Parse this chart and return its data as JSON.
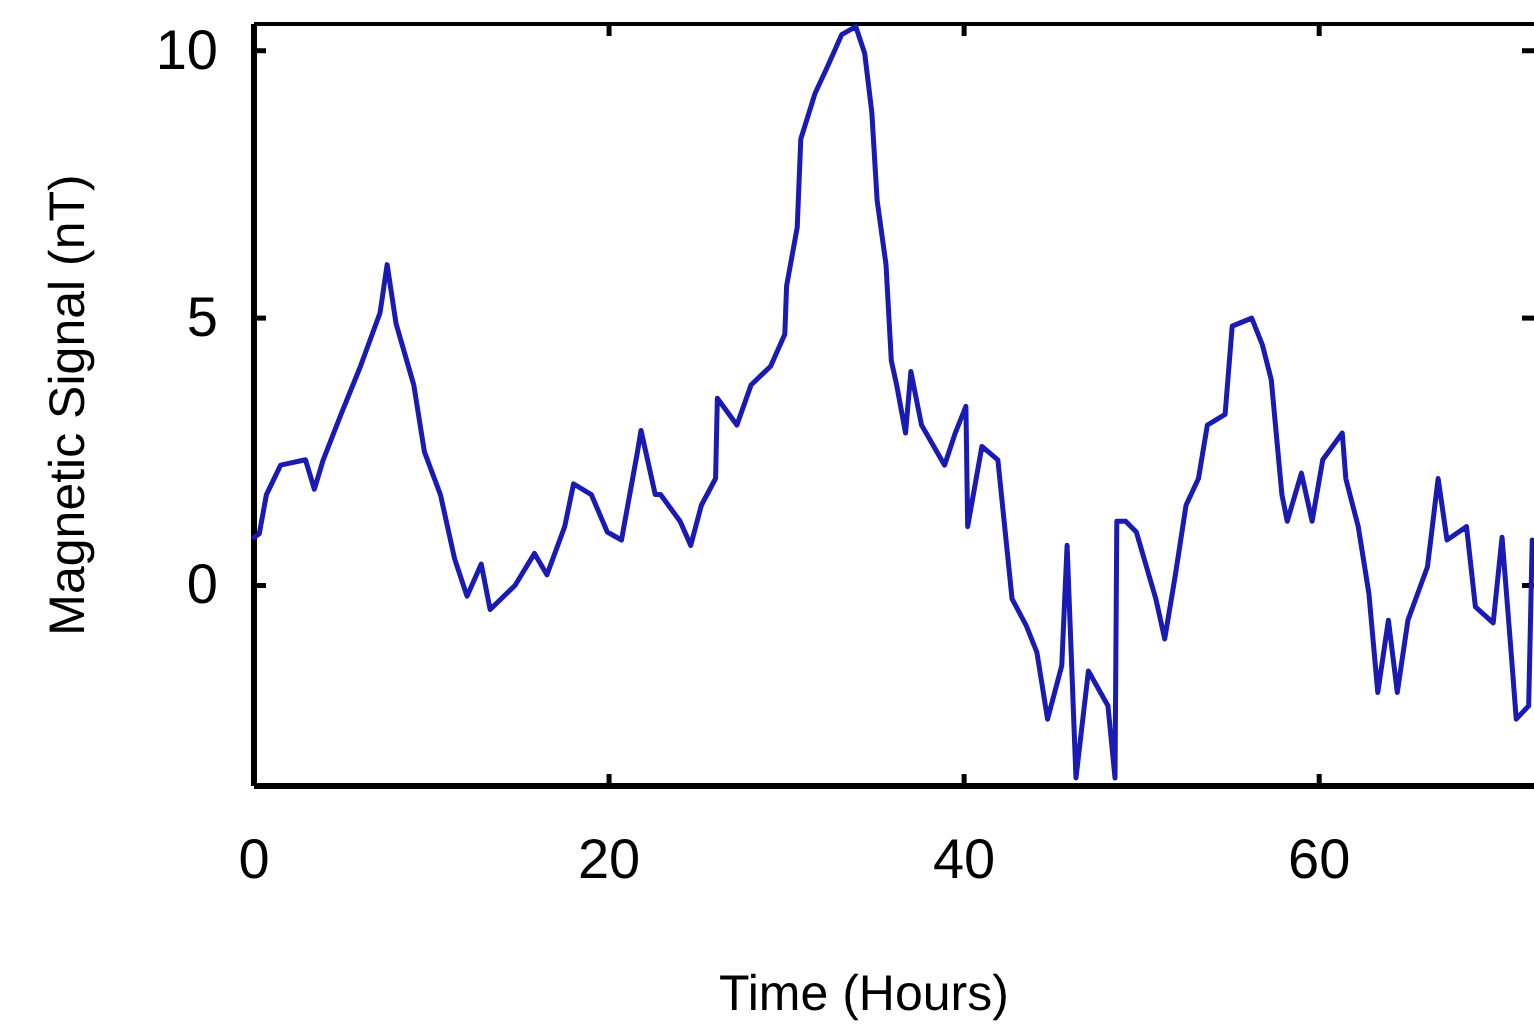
{
  "chart_data": {
    "type": "line",
    "xlabel": "Time (Hours)",
    "ylabel": "Magnetic Signal (nT)",
    "xlim": [
      0,
      72.1
    ],
    "ylim": [
      -3.75,
      10.5
    ],
    "xticks": [
      0,
      20,
      40,
      60
    ],
    "yticks": [
      0,
      5,
      10
    ],
    "grid": false,
    "marker": "none",
    "line_style": "solid",
    "series": [
      {
        "color": "#1a1ab4",
        "x": [
          0,
          0.3,
          0.7,
          1.5,
          2.9,
          3.4,
          3.9,
          4.9,
          6.0,
          7.1,
          7.5,
          8.0,
          9.0,
          9.6,
          10.5,
          11.3,
          12.0,
          12.8,
          13.3,
          14.7,
          15.8,
          16.5,
          17.5,
          18.0,
          19.0,
          19.9,
          20.7,
          21.6,
          21.8,
          22.6,
          22.9,
          24.0,
          24.6,
          25.2,
          26.0,
          26.1,
          27.2,
          28.0,
          29.1,
          29.9,
          30.0,
          30.6,
          30.8,
          31.6,
          32.3,
          33.1,
          33.9,
          34.4,
          34.8,
          35.1,
          35.6,
          35.9,
          36.2,
          36.7,
          37.0,
          37.6,
          38.9,
          39.5,
          40.1,
          40.2,
          41.0,
          41.9,
          42.7,
          43.5,
          44.1,
          44.7,
          45.5,
          45.8,
          46.3,
          47.0,
          48.1,
          48.5,
          48.6,
          49.1,
          49.7,
          50.8,
          51.3,
          51.9,
          52.5,
          53.2,
          53.7,
          54.7,
          55.1,
          56.2,
          56.8,
          57.3,
          57.9,
          58.2,
          59.0,
          59.6,
          60.2,
          61.3,
          61.5,
          62.2,
          62.8,
          63.3,
          63.9,
          64.4,
          65.0,
          66.1,
          66.7,
          67.2,
          68.3,
          68.8,
          69.8,
          70.3,
          70.8,
          71.1,
          71.8,
          72.0
        ],
        "values": [
          0.9,
          0.97,
          1.7,
          2.25,
          2.35,
          1.8,
          2.35,
          3.2,
          4.1,
          5.1,
          6.0,
          4.9,
          3.75,
          2.5,
          1.7,
          0.5,
          -0.2,
          0.4,
          -0.45,
          0,
          0.6,
          0.2,
          1.1,
          1.9,
          1.7,
          1.0,
          0.85,
          2.5,
          2.9,
          1.7,
          1.7,
          1.2,
          0.75,
          1.5,
          2.0,
          3.5,
          3.0,
          3.75,
          4.1,
          4.7,
          5.6,
          6.7,
          8.35,
          9.2,
          9.7,
          10.3,
          10.45,
          9.95,
          8.85,
          7.2,
          6.0,
          4.2,
          3.75,
          2.85,
          4.0,
          3.0,
          2.25,
          2.85,
          3.35,
          1.1,
          2.6,
          2.35,
          -0.25,
          -0.75,
          -1.25,
          -2.5,
          -1.5,
          0.75,
          -3.6,
          -1.6,
          -2.25,
          -3.6,
          1.2,
          1.2,
          1.0,
          -0.25,
          -1.0,
          0.2,
          1.5,
          2.0,
          3.0,
          3.2,
          4.85,
          5.0,
          4.5,
          3.85,
          1.7,
          1.2,
          2.1,
          1.2,
          2.35,
          2.85,
          2.0,
          1.1,
          -0.15,
          -2.0,
          -0.65,
          -2.0,
          -0.65,
          0.35,
          2.0,
          0.85,
          1.1,
          -0.4,
          -0.7,
          0.9,
          -1.2,
          -2.5,
          -2.25,
          0.85
        ]
      }
    ]
  }
}
